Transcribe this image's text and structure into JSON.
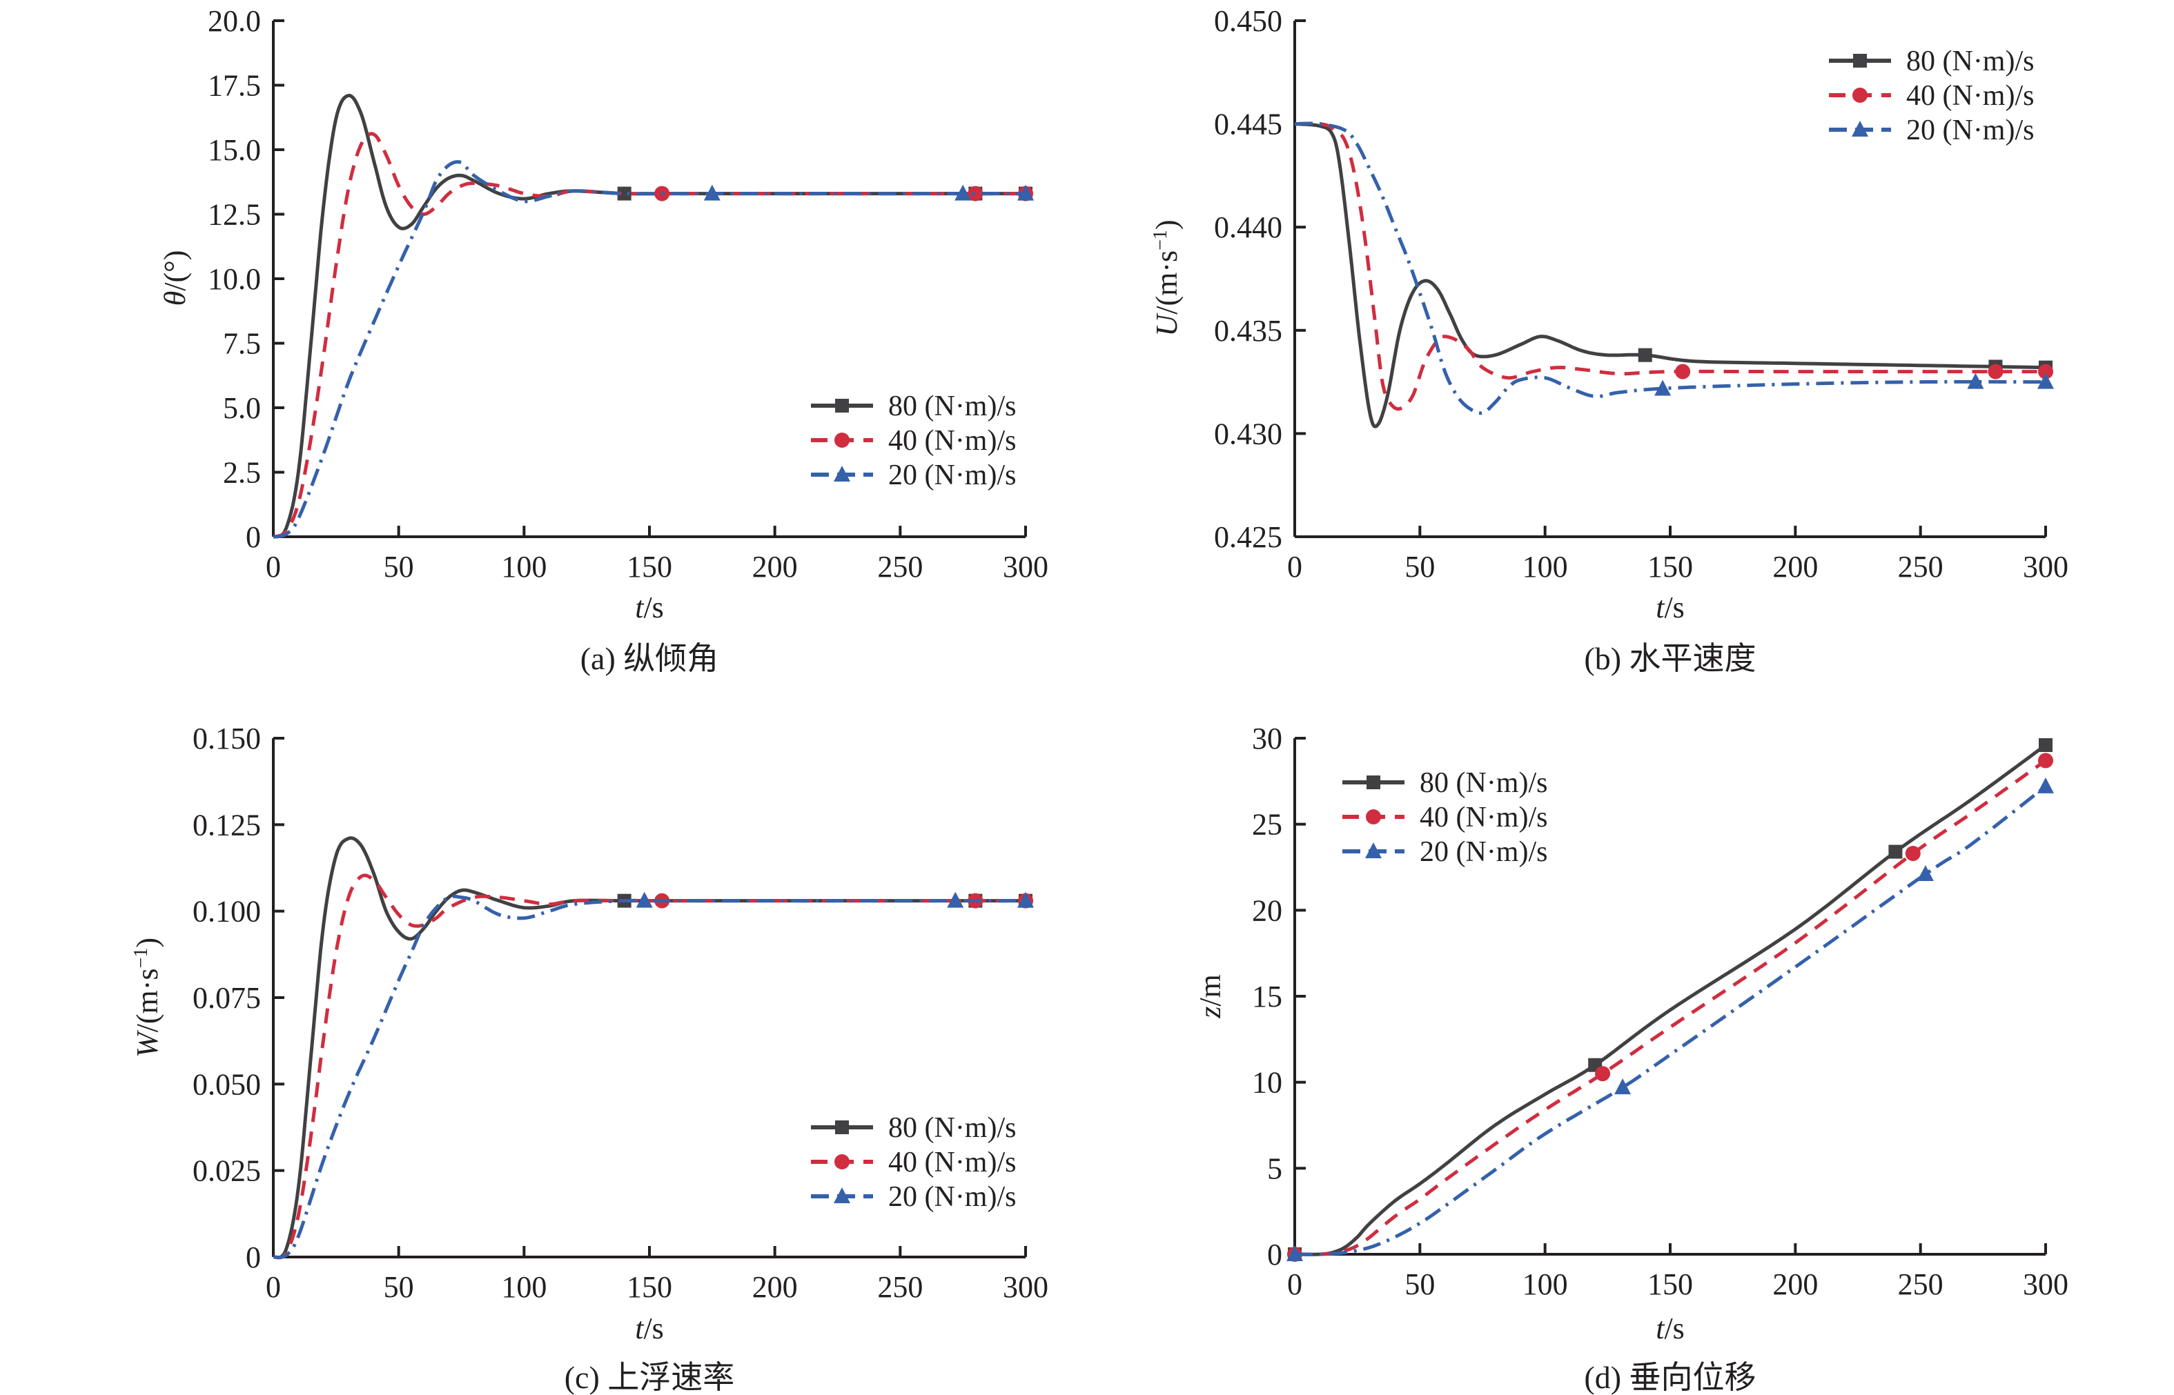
{
  "legend_labels": [
    "80 (N·m)/s",
    "40 (N·m)/s",
    "20 (N·m)/s"
  ],
  "series_styles": [
    {
      "name": "80 (N·m)/s",
      "color": "#414042",
      "dash": "solid",
      "marker": "square"
    },
    {
      "name": "40 (N·m)/s",
      "color": "#d02d3f",
      "dash": "dashed",
      "marker": "circle"
    },
    {
      "name": "20 (N·m)/s",
      "color": "#3561ab",
      "dash": "dash-dot",
      "marker": "triangle"
    }
  ],
  "chart_data": [
    {
      "id": "a",
      "type": "line",
      "caption": "(a) 纵倾角",
      "xlabel": "t/s",
      "ylabel": "θ/(°)",
      "xlim": [
        0,
        300
      ],
      "ylim": [
        0,
        20
      ],
      "xticks": [
        0,
        50,
        100,
        150,
        200,
        250,
        300
      ],
      "yticks": [
        0,
        2.5,
        5.0,
        7.5,
        10.0,
        12.5,
        15.0,
        17.5,
        20.0
      ],
      "ytick_labels": [
        "0",
        "2.5",
        "5.0",
        "7.5",
        "10.0",
        "12.5",
        "15.0",
        "17.5",
        "20.0"
      ],
      "legend": "lower-right",
      "series": [
        {
          "name": "80 (N·m)/s",
          "x": [
            0,
            5,
            10,
            15,
            20,
            25,
            30,
            35,
            40,
            45,
            50,
            55,
            60,
            65,
            70,
            75,
            80,
            90,
            100,
            110,
            120,
            140,
            160,
            200,
            250,
            300
          ],
          "y": [
            0,
            0.3,
            2.5,
            7.5,
            12.8,
            16.2,
            17.1,
            16.4,
            14.6,
            12.8,
            12.0,
            12.1,
            12.8,
            13.5,
            13.9,
            14.0,
            13.8,
            13.3,
            13.1,
            13.3,
            13.4,
            13.3,
            13.3,
            13.3,
            13.3,
            13.3
          ],
          "markers_x": [
            140,
            280,
            300
          ]
        },
        {
          "name": "40 (N·m)/s",
          "x": [
            0,
            5,
            10,
            15,
            20,
            25,
            30,
            35,
            40,
            45,
            50,
            55,
            60,
            65,
            70,
            75,
            80,
            90,
            100,
            110,
            120,
            140,
            160,
            200,
            250,
            300
          ],
          "y": [
            0,
            0.2,
            1.3,
            3.8,
            7.0,
            10.5,
            13.5,
            15.2,
            15.6,
            14.8,
            13.6,
            12.8,
            12.5,
            12.8,
            13.3,
            13.6,
            13.7,
            13.6,
            13.3,
            13.2,
            13.4,
            13.3,
            13.3,
            13.3,
            13.3,
            13.3
          ],
          "markers_x": [
            155,
            280,
            300
          ]
        },
        {
          "name": "20 (N·m)/s",
          "x": [
            0,
            5,
            10,
            20,
            30,
            40,
            50,
            60,
            65,
            70,
            75,
            80,
            90,
            100,
            110,
            120,
            140,
            160,
            200,
            250,
            300
          ],
          "y": [
            0,
            0.1,
            0.7,
            3.2,
            6.0,
            8.3,
            10.5,
            12.6,
            13.8,
            14.4,
            14.5,
            14.0,
            13.4,
            13.0,
            13.2,
            13.4,
            13.3,
            13.3,
            13.3,
            13.3,
            13.3
          ],
          "markers_x": [
            175,
            275,
            300
          ]
        }
      ]
    },
    {
      "id": "b",
      "type": "line",
      "caption": "(b) 水平速度",
      "xlabel": "t/s",
      "ylabel": "U/(m·s⁻¹)",
      "xlim": [
        0,
        300
      ],
      "ylim": [
        0.425,
        0.45
      ],
      "xticks": [
        0,
        50,
        100,
        150,
        200,
        250,
        300
      ],
      "yticks": [
        0.425,
        0.43,
        0.435,
        0.44,
        0.445,
        0.45
      ],
      "ytick_labels": [
        "0.425",
        "0.430",
        "0.435",
        "0.440",
        "0.445",
        "0.450"
      ],
      "legend": "top-right",
      "series": [
        {
          "name": "80 (N·m)/s",
          "x": [
            0,
            10,
            15,
            18,
            22,
            26,
            30,
            33,
            37,
            42,
            47,
            52,
            57,
            62,
            67,
            72,
            80,
            90,
            98,
            105,
            115,
            125,
            140,
            160,
            200,
            250,
            300
          ],
          "y": [
            0.445,
            0.4449,
            0.4445,
            0.443,
            0.439,
            0.4345,
            0.431,
            0.4304,
            0.4318,
            0.435,
            0.4368,
            0.4374,
            0.437,
            0.4358,
            0.4345,
            0.4338,
            0.4338,
            0.4343,
            0.4347,
            0.4345,
            0.434,
            0.4338,
            0.4338,
            0.4335,
            0.4334,
            0.4333,
            0.4332
          ],
          "markers_x": [
            140,
            280,
            300
          ]
        },
        {
          "name": "40 (N·m)/s",
          "x": [
            0,
            10,
            15,
            20,
            24,
            28,
            32,
            35,
            38,
            42,
            47,
            52,
            57,
            60,
            65,
            70,
            75,
            85,
            95,
            105,
            115,
            130,
            150,
            200,
            250,
            300
          ],
          "y": [
            0.445,
            0.445,
            0.4448,
            0.4442,
            0.4425,
            0.4395,
            0.4355,
            0.4325,
            0.4315,
            0.4312,
            0.4318,
            0.4335,
            0.4345,
            0.4347,
            0.4345,
            0.434,
            0.4332,
            0.4327,
            0.433,
            0.4332,
            0.4331,
            0.4329,
            0.433,
            0.433,
            0.433,
            0.433
          ],
          "markers_x": [
            155,
            280,
            300
          ]
        },
        {
          "name": "20 (N·m)/s",
          "x": [
            0,
            10,
            20,
            25,
            30,
            35,
            40,
            45,
            50,
            55,
            60,
            65,
            70,
            75,
            80,
            85,
            90,
            100,
            110,
            120,
            130,
            150,
            200,
            250,
            300
          ],
          "y": [
            0.445,
            0.445,
            0.4447,
            0.444,
            0.4428,
            0.4415,
            0.44,
            0.4385,
            0.4368,
            0.435,
            0.433,
            0.4318,
            0.4312,
            0.431,
            0.4315,
            0.4322,
            0.4326,
            0.4327,
            0.4322,
            0.4318,
            0.432,
            0.4322,
            0.4324,
            0.4325,
            0.4325
          ],
          "markers_x": [
            147,
            272,
            300
          ]
        }
      ]
    },
    {
      "id": "c",
      "type": "line",
      "caption": "(c) 上浮速率",
      "xlabel": "t/s",
      "ylabel": "W/(m·s⁻¹)",
      "xlim": [
        0,
        300
      ],
      "ylim": [
        0,
        0.15
      ],
      "xticks": [
        0,
        50,
        100,
        150,
        200,
        250,
        300
      ],
      "yticks": [
        0,
        0.025,
        0.05,
        0.075,
        0.1,
        0.125,
        0.15
      ],
      "ytick_labels": [
        "0",
        "0.025",
        "0.050",
        "0.075",
        "0.100",
        "0.125",
        "0.150"
      ],
      "legend": "lower-right",
      "series": [
        {
          "name": "80 (N·m)/s",
          "x": [
            0,
            5,
            10,
            15,
            20,
            25,
            30,
            35,
            40,
            45,
            50,
            55,
            60,
            65,
            70,
            75,
            80,
            90,
            100,
            110,
            120,
            140,
            160,
            200,
            250,
            300
          ],
          "y": [
            0,
            0.002,
            0.02,
            0.058,
            0.096,
            0.116,
            0.121,
            0.119,
            0.111,
            0.1,
            0.094,
            0.092,
            0.095,
            0.1,
            0.104,
            0.106,
            0.1055,
            0.103,
            0.101,
            0.1015,
            0.103,
            0.103,
            0.103,
            0.103,
            0.103,
            0.103
          ],
          "markers_x": [
            140,
            280,
            300
          ]
        },
        {
          "name": "40 (N·m)/s",
          "x": [
            0,
            5,
            10,
            15,
            20,
            25,
            30,
            35,
            40,
            45,
            50,
            55,
            60,
            65,
            70,
            80,
            90,
            100,
            110,
            120,
            140,
            160,
            200,
            250,
            300
          ],
          "y": [
            0,
            0.001,
            0.012,
            0.035,
            0.063,
            0.088,
            0.104,
            0.11,
            0.109,
            0.104,
            0.099,
            0.096,
            0.096,
            0.098,
            0.101,
            0.104,
            0.104,
            0.103,
            0.102,
            0.103,
            0.103,
            0.103,
            0.103,
            0.103,
            0.103
          ],
          "markers_x": [
            155,
            280,
            300
          ]
        },
        {
          "name": "20 (N·m)/s",
          "x": [
            0,
            5,
            10,
            20,
            30,
            40,
            50,
            55,
            60,
            65,
            70,
            75,
            80,
            90,
            100,
            110,
            120,
            140,
            160,
            200,
            250,
            300
          ],
          "y": [
            0,
            0.0005,
            0.006,
            0.028,
            0.047,
            0.063,
            0.08,
            0.088,
            0.096,
            0.101,
            0.104,
            0.104,
            0.103,
            0.099,
            0.098,
            0.1,
            0.102,
            0.103,
            0.103,
            0.103,
            0.103,
            0.103
          ],
          "markers_x": [
            148,
            272,
            300
          ]
        }
      ]
    },
    {
      "id": "d",
      "type": "line",
      "caption": "(d) 垂向位移",
      "xlabel": "t/s",
      "ylabel": "z/m",
      "xlim": [
        0,
        300
      ],
      "ylim": [
        0,
        30
      ],
      "xticks": [
        0,
        50,
        100,
        150,
        200,
        250,
        300
      ],
      "yticks": [
        0,
        5,
        10,
        15,
        20,
        25,
        30
      ],
      "ytick_labels": [
        "0",
        "5",
        "10",
        "15",
        "20",
        "25",
        "30"
      ],
      "legend": "top-left",
      "series": [
        {
          "name": "80 (N·m)/s",
          "x": [
            0,
            10,
            15,
            20,
            25,
            30,
            40,
            50,
            60,
            80,
            100,
            120,
            150,
            200,
            240,
            270,
            300
          ],
          "y": [
            0,
            0,
            0.1,
            0.4,
            1.0,
            1.8,
            3.1,
            4.1,
            5.2,
            7.5,
            9.3,
            11.0,
            14.2,
            18.9,
            23.4,
            26.4,
            29.6
          ],
          "markers_x": [
            0,
            120,
            240,
            300
          ]
        },
        {
          "name": "40 (N·m)/s",
          "x": [
            0,
            10,
            15,
            20,
            25,
            30,
            40,
            50,
            60,
            80,
            100,
            123,
            150,
            200,
            247,
            270,
            300
          ],
          "y": [
            0,
            0,
            0.05,
            0.2,
            0.5,
            1.0,
            2.2,
            3.2,
            4.3,
            6.4,
            8.4,
            10.5,
            13.2,
            18.1,
            23.3,
            25.6,
            28.7
          ],
          "markers_x": [
            0,
            123,
            247,
            300
          ]
        },
        {
          "name": "20 (N·m)/s",
          "x": [
            0,
            10,
            20,
            30,
            40,
            50,
            60,
            80,
            100,
            131,
            150,
            200,
            252,
            270,
            300
          ],
          "y": [
            0,
            0,
            0.1,
            0.4,
            1.0,
            1.8,
            2.8,
            4.9,
            7.0,
            9.7,
            11.6,
            16.7,
            22.1,
            23.8,
            27.2
          ],
          "markers_x": [
            0,
            131,
            252,
            300
          ]
        }
      ]
    }
  ]
}
